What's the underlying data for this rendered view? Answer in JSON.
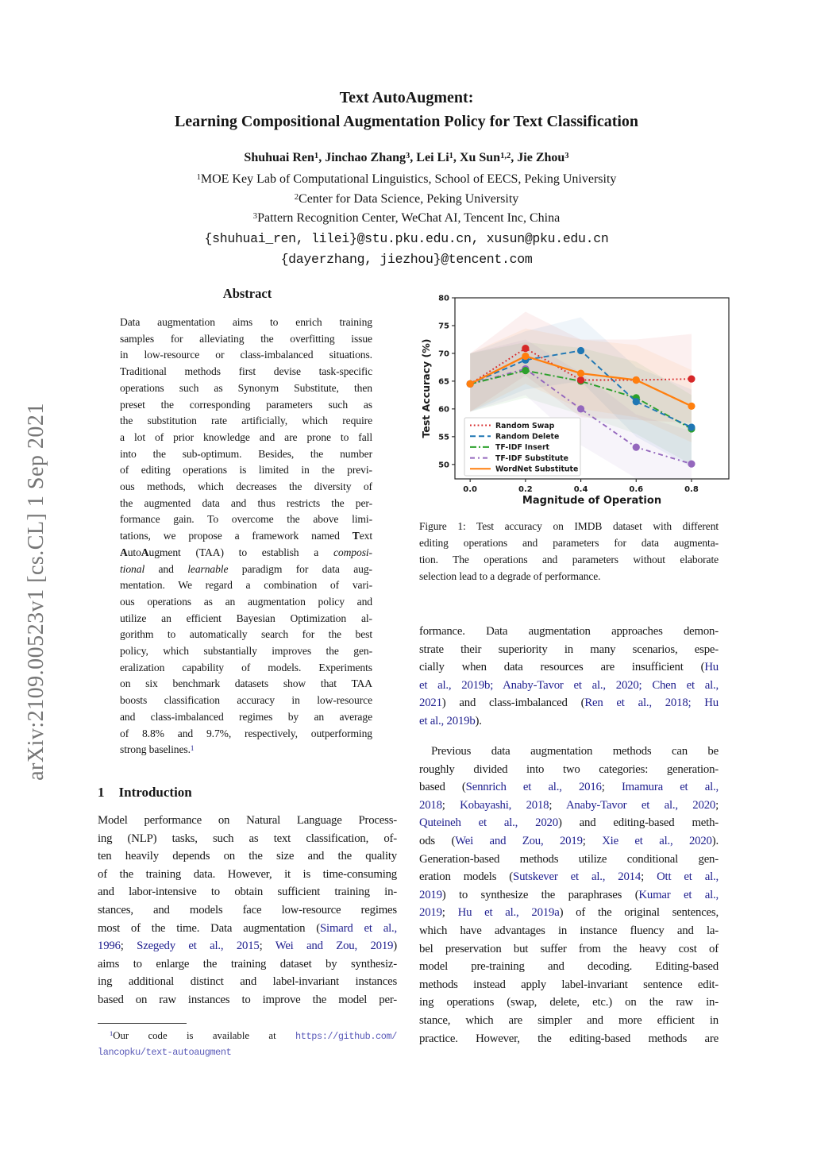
{
  "sidebar": {
    "arxiv_label": "arXiv:2109.00523v1  [cs.CL]  1 Sep 2021"
  },
  "header": {
    "title_line1": "Text AutoAugment:",
    "title_line2": "Learning Compositional Augmentation Policy for Text Classification",
    "authors": [
      "Shuhuai Ren",
      {
        "t": "1",
        "c": "sup"
      },
      ", Jinchao Zhang",
      {
        "t": "3",
        "c": "sup"
      },
      ", Lei Li",
      {
        "t": "1",
        "c": "sup"
      },
      ", Xu Sun",
      {
        "t": "1,2",
        "c": "sup"
      },
      ", Jie Zhou",
      {
        "t": "3",
        "c": "sup"
      }
    ],
    "affil1": [
      {
        "t": "1",
        "c": "sup"
      },
      "MOE Key Lab of Computational Linguistics, School of EECS, Peking University"
    ],
    "affil2": [
      {
        "t": "2",
        "c": "sup"
      },
      "Center for Data Science, Peking University"
    ],
    "affil3": [
      {
        "t": "3",
        "c": "sup"
      },
      "Pattern Recognition Center, WeChat AI, Tencent Inc, China"
    ],
    "email1": "{shuhuai_ren, lilei}@stu.pku.edu.cn, xusun@pku.edu.cn",
    "email2": "{dayerzhang, jiezhou}@tencent.com"
  },
  "abstract": {
    "heading": "Abstract",
    "lines": [
      "Data augmentation aims to enrich training",
      "samples for alleviating the overfitting issue",
      "in low-resource or class-imbalanced situations.",
      "Traditional methods first devise task-specific",
      "operations such as Synonym Substitute, then",
      "preset the corresponding parameters such as",
      "the substitution rate artificially, which require",
      "a lot of prior knowledge and are prone to fall",
      "into the sub-optimum.  Besides, the number",
      "of editing operations is limited in the previ-",
      "ous methods, which decreases the diversity of",
      "the augmented data and thus restricts the per-",
      "formance gain.  To overcome the above limi-",
      {
        "s": [
          "tations, we propose a framework named ",
          {
            "t": "T",
            "c": "b"
          },
          "ext"
        ]
      },
      {
        "s": [
          {
            "t": "A",
            "c": "b"
          },
          "uto",
          {
            "t": "A",
            "c": "b"
          },
          "ugment (TAA) to establish a ",
          {
            "t": "composi-",
            "c": "i"
          }
        ]
      },
      {
        "s": [
          {
            "t": "tional",
            "c": "i"
          },
          " and ",
          {
            "t": "learnable",
            "c": "i"
          },
          " paradigm for data aug-"
        ]
      },
      "mentation.  We regard a combination of vari-",
      "ous operations as an augmentation policy and",
      "utilize an efficient Bayesian Optimization al-",
      "gorithm to automatically search for the best",
      "policy, which substantially improves the gen-",
      "eralization capability of models.  Experiments",
      "on six benchmark datasets show that TAA",
      "boosts classification accuracy in low-resource",
      "and class-imbalanced regimes by an average",
      "of 8.8% and 9.7%, respectively, outperforming",
      {
        "s": [
          "strong baselines.",
          {
            "t": "1",
            "c": "fn"
          }
        ],
        "e": 1
      }
    ]
  },
  "intro": {
    "heading_num": "1",
    "heading_text": "Introduction",
    "lines": [
      "Model performance on Natural Language Process-",
      "ing (NLP) tasks, such as text classification, of-",
      "ten heavily depends on the size and the quality",
      "of the training data. However, it is time-consuming",
      "and labor-intensive to obtain sufficient training in-",
      "stances, and models face low-resource regimes",
      {
        "s": [
          "most of the time. Data augmentation (",
          {
            "t": "Simard et al.,",
            "c": "cite"
          }
        ]
      },
      {
        "s": [
          {
            "t": "1996",
            "c": "cite"
          },
          "; ",
          {
            "t": "Szegedy et al., 2015",
            "c": "cite"
          },
          "; ",
          {
            "t": "Wei and Zou, 2019",
            "c": "cite"
          },
          ")"
        ]
      },
      "aims to enlarge the training dataset by synthesiz-",
      "ing additional distinct and label-invariant instances",
      "based on raw instances to improve the model per-"
    ]
  },
  "figure": {
    "caption_lines": [
      "Figure 1: Test accuracy on IMDB dataset with different",
      "editing operations and parameters for data augmenta-",
      "tion.  The operations and parameters without elaborate",
      {
        "s": [
          "selection lead to a degrade of performance."
        ],
        "e": 1
      }
    ]
  },
  "right": {
    "p1_lines": [
      "formance. Data augmentation approaches demon-",
      "strate their superiority in many scenarios, espe-",
      {
        "s": [
          "cially when data resources are insufficient (",
          {
            "t": "Hu",
            "c": "cite"
          }
        ]
      },
      {
        "s": [
          {
            "t": "et al., 2019b; Anaby-Tavor et al., 2020; Chen et al.,",
            "c": "cite"
          }
        ]
      },
      {
        "s": [
          {
            "t": "2021",
            "c": "cite"
          },
          ") and class-imbalanced (",
          {
            "t": "Ren et al., 2018; Hu",
            "c": "cite"
          }
        ]
      },
      {
        "s": [
          {
            "t": "et al., 2019b",
            "c": "cite"
          },
          ")."
        ],
        "e": 1
      }
    ],
    "p2_lines": [
      {
        "s": [
          "Previous data augmentation methods can be"
        ],
        "i": 1
      },
      "roughly divided into two categories: generation-",
      {
        "s": [
          "based (",
          {
            "t": "Sennrich et al., 2016",
            "c": "cite"
          },
          "; ",
          {
            "t": "Imamura et al.,",
            "c": "cite"
          }
        ]
      },
      {
        "s": [
          {
            "t": "2018",
            "c": "cite"
          },
          "; ",
          {
            "t": "Kobayashi, 2018",
            "c": "cite"
          },
          "; ",
          {
            "t": "Anaby-Tavor et al., 2020",
            "c": "cite"
          },
          ";"
        ]
      },
      {
        "s": [
          {
            "t": "Quteineh et al., 2020",
            "c": "cite"
          },
          ") and editing-based meth-"
        ]
      },
      {
        "s": [
          "ods (",
          {
            "t": "Wei and Zou, 2019",
            "c": "cite"
          },
          "; ",
          {
            "t": "Xie et al., 2020",
            "c": "cite"
          },
          ")."
        ]
      },
      "Generation-based methods utilize conditional gen-",
      {
        "s": [
          "eration models (",
          {
            "t": "Sutskever et al., 2014",
            "c": "cite"
          },
          "; ",
          {
            "t": "Ott et al.,",
            "c": "cite"
          }
        ]
      },
      {
        "s": [
          {
            "t": "2019",
            "c": "cite"
          },
          ") to synthesize the paraphrases (",
          {
            "t": "Kumar et al.,",
            "c": "cite"
          }
        ]
      },
      {
        "s": [
          {
            "t": "2019",
            "c": "cite"
          },
          "; ",
          {
            "t": "Hu et al., 2019a",
            "c": "cite"
          },
          ") of the original sentences,"
        ]
      },
      "which have advantages in instance fluency and la-",
      "bel preservation but suffer from the heavy cost of",
      "model pre-training and decoding.  Editing-based",
      "methods instead apply label-invariant sentence edit-",
      "ing operations (swap, delete, etc.)  on the raw in-",
      "stance, which are simpler and more efficient in",
      "practice. However, the editing-based methods are"
    ]
  },
  "footnote": {
    "lines": [
      {
        "s": [
          {
            "t": "1",
            "c": "fn"
          },
          "Our code is available at ",
          {
            "t": "https://github.com/",
            "c": "url"
          }
        ],
        "i": 1
      },
      {
        "s": [
          {
            "t": "lancopku/text-autoaugment",
            "c": "url"
          }
        ],
        "e": 1
      }
    ]
  },
  "chart_data": {
    "type": "line",
    "title": "",
    "xlabel": "Magnitude of Operation",
    "ylabel": "Test Accuracy (%)",
    "x": [
      0.0,
      0.2,
      0.4,
      0.6,
      0.8
    ],
    "xticks": [
      "0.0",
      "0.2",
      "0.4",
      "0.6",
      "0.8"
    ],
    "yticks": [
      50,
      55,
      60,
      65,
      70,
      75,
      80
    ],
    "xlim": [
      -0.055,
      0.935
    ],
    "ylim": [
      47.4,
      80
    ],
    "grid": false,
    "legend_position": "lower left",
    "draw_order": [
      3,
      2,
      1,
      0,
      4
    ],
    "series": [
      {
        "name": "Random Swap",
        "color": "#d62728",
        "dash": "1.8 3",
        "values": [
          64.5,
          70.9,
          65.2,
          65.2,
          65.4
        ],
        "band_low": [
          59.5,
          66,
          58.5,
          58,
          57.5
        ],
        "band_high": [
          70,
          77.5,
          72.5,
          72.5,
          73.5
        ]
      },
      {
        "name": "Random Delete",
        "color": "#1f77b4",
        "dash": "7 4",
        "values": [
          64.5,
          68.8,
          70.5,
          61.3,
          56.7
        ],
        "band_low": [
          59.5,
          63.5,
          65,
          55,
          49.5
        ],
        "band_high": [
          70,
          74,
          76.5,
          67.5,
          63.5
        ]
      },
      {
        "name": "TF-IDF Insert",
        "color": "#2ca02c",
        "dash": "8 3 2 3",
        "values": [
          64.5,
          66.9,
          65.0,
          62.0,
          56.4
        ],
        "band_low": [
          59.5,
          62,
          59,
          55.5,
          50
        ],
        "band_high": [
          70,
          72,
          71,
          68.5,
          62.5
        ]
      },
      {
        "name": "TF-IDF Substitute",
        "color": "#9467bd",
        "dash": "6 4 2 4",
        "values": [
          64.5,
          67.2,
          60.0,
          53.1,
          50.1
        ],
        "band_low": [
          59.5,
          62.5,
          53.5,
          47.5,
          44.5
        ],
        "band_high": [
          70,
          72.5,
          66.5,
          59,
          56
        ]
      },
      {
        "name": "WordNet Substitute",
        "color": "#ff7f0e",
        "dash": "",
        "values": [
          64.5,
          69.5,
          66.4,
          65.2,
          60.5
        ],
        "band_low": [
          59.5,
          64.5,
          60,
          58.5,
          54
        ],
        "band_high": [
          70,
          74.5,
          72.5,
          71.5,
          67
        ]
      }
    ]
  }
}
